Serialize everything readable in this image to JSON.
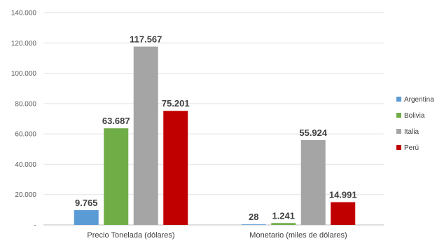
{
  "chart_data": {
    "type": "bar",
    "categories": [
      "Precio Tonelada (dólares)",
      "Monetario (miles de dólares)"
    ],
    "series": [
      {
        "name": "Argentina",
        "color": "#5b9bd5",
        "values": [
          9765,
          28
        ],
        "labels": [
          "9.765",
          "28"
        ]
      },
      {
        "name": "Bolivia",
        "color": "#70ad47",
        "values": [
          63687,
          1241
        ],
        "labels": [
          "63.687",
          "1.241"
        ]
      },
      {
        "name": "Italia",
        "color": "#a5a5a5",
        "values": [
          117567,
          55924
        ],
        "labels": [
          "117.567",
          "55.924"
        ]
      },
      {
        "name": "Perú",
        "color": "#c00000",
        "values": [
          75201,
          14991
        ],
        "labels": [
          "75.201",
          "14.991"
        ]
      }
    ],
    "yticks": [
      0,
      20000,
      40000,
      60000,
      80000,
      100000,
      120000,
      140000
    ],
    "ytick_labels": [
      "-",
      "20.000",
      "40.000",
      "60.000",
      "80.000",
      "100.000",
      "120.000",
      "140.000"
    ],
    "ylim": [
      0,
      140000
    ],
    "grid": true,
    "legend_position": "right"
  }
}
